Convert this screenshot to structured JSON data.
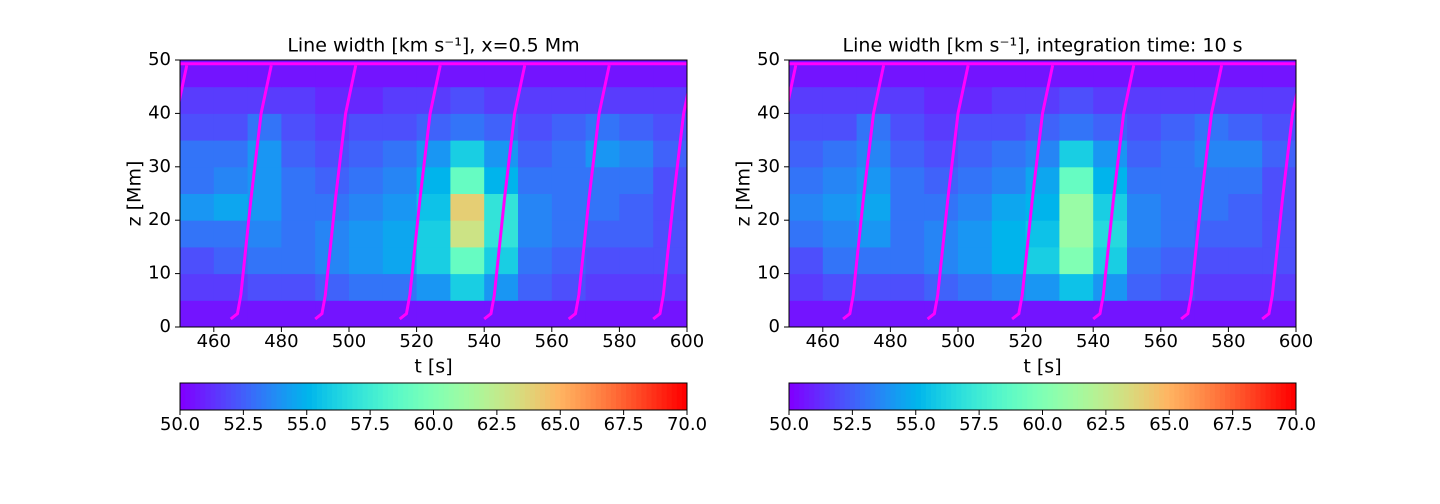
{
  "chart_data": [
    {
      "type": "heatmap",
      "title": "Line width [km s⁻¹], x=0.5 Mm",
      "xlabel": "t [s]",
      "ylabel": "z [Mm]",
      "xlim": [
        450,
        600
      ],
      "xticks": [
        460,
        480,
        500,
        520,
        540,
        560,
        580,
        600
      ],
      "ylim": [
        0,
        50
      ],
      "yticks": [
        0,
        10,
        20,
        30,
        40,
        50
      ],
      "x_bins": [
        450,
        460,
        470,
        480,
        490,
        500,
        510,
        520,
        530,
        540,
        550,
        560,
        570,
        580,
        590,
        600
      ],
      "y_bins": [
        0,
        5,
        10,
        15,
        20,
        25,
        30,
        35,
        40,
        45,
        50
      ],
      "values": [
        [
          50.5,
          50.5,
          50.5,
          50.5,
          50.5,
          50.5,
          50.5,
          50.5,
          50.5,
          50.5,
          50.5,
          50.5,
          50.5,
          50.5,
          50.5
        ],
        [
          51.5,
          51.5,
          52,
          52,
          52.5,
          53,
          53,
          54,
          56,
          54,
          52.5,
          52,
          51.5,
          51.5,
          51.5
        ],
        [
          52,
          52.5,
          53,
          53,
          53.5,
          54,
          54.5,
          56,
          59,
          56,
          53,
          52.5,
          52,
          52,
          52
        ],
        [
          53,
          53,
          53.5,
          53,
          53.5,
          54,
          54.5,
          56,
          63,
          57,
          53.5,
          53,
          52.5,
          52.5,
          52
        ],
        [
          54,
          54.5,
          54,
          53,
          53,
          53.5,
          54,
          55.5,
          64,
          57,
          53.5,
          53,
          53,
          52.5,
          52
        ],
        [
          53,
          53.5,
          54,
          53,
          52.5,
          53,
          53.5,
          55,
          59,
          55,
          53,
          53,
          53,
          53,
          52
        ],
        [
          53,
          53,
          54,
          52.5,
          52,
          52.5,
          53,
          54,
          56,
          54,
          52.5,
          53,
          54,
          53.5,
          52.5
        ],
        [
          52,
          52,
          53,
          52,
          51.5,
          52,
          52,
          52.5,
          53,
          52.5,
          52,
          52.5,
          53,
          52.5,
          52
        ],
        [
          51.5,
          51.5,
          51.5,
          51.5,
          51,
          51,
          51.5,
          51.5,
          52,
          51.5,
          51.5,
          51.5,
          51.5,
          51.5,
          51.5
        ],
        [
          50.5,
          50.5,
          50.5,
          50.5,
          50.5,
          50.5,
          50.5,
          50.5,
          50.5,
          50.5,
          50.5,
          50.5,
          50.5,
          50.5,
          50.5
        ]
      ],
      "colormap": "rainbow",
      "clim": [
        50,
        70
      ],
      "cticks": [
        {
          "value": 50,
          "label": "50.0"
        },
        52.5,
        {
          "value": 55,
          "label": "55.0"
        },
        57.5,
        {
          "value": 60,
          "label": "60.0"
        },
        62.5,
        {
          "value": 65,
          "label": "65.0"
        },
        67.5,
        {
          "value": 70,
          "label": "70.0"
        }
      ],
      "curve_color": "#ff00ff",
      "curves": [
        {
          "t": [
            450,
            600
          ],
          "z": [
            49.3,
            49.3
          ]
        },
        {
          "t": [
            440,
            442,
            443,
            446,
            449,
            452
          ],
          "z": [
            1.5,
            2.5,
            6,
            24,
            40,
            49
          ]
        },
        {
          "t": [
            465,
            467,
            468,
            471,
            474,
            477
          ],
          "z": [
            1.5,
            2.5,
            6,
            24,
            40,
            49
          ]
        },
        {
          "t": [
            490,
            492,
            493,
            496,
            499,
            502
          ],
          "z": [
            1.5,
            2.5,
            6,
            24,
            40,
            49
          ]
        },
        {
          "t": [
            515,
            517,
            518,
            521,
            524,
            527
          ],
          "z": [
            1.5,
            2.5,
            6,
            24,
            40,
            49
          ]
        },
        {
          "t": [
            540,
            542,
            543,
            546,
            549,
            552
          ],
          "z": [
            1.5,
            2.5,
            6,
            24,
            40,
            49
          ]
        },
        {
          "t": [
            565,
            567,
            568,
            571,
            574,
            577
          ],
          "z": [
            1.5,
            2.5,
            6,
            24,
            40,
            49
          ]
        },
        {
          "t": [
            590,
            592,
            593,
            596,
            599,
            602
          ],
          "z": [
            1.5,
            2.5,
            6,
            24,
            40,
            49
          ]
        }
      ]
    },
    {
      "type": "heatmap",
      "title": "Line width [km s⁻¹], integration time: 10 s",
      "xlabel": "t [s]",
      "ylabel": "z [Mm]",
      "xlim": [
        450,
        600
      ],
      "xticks": [
        460,
        480,
        500,
        520,
        540,
        560,
        580,
        600
      ],
      "ylim": [
        0,
        50
      ],
      "yticks": [
        0,
        10,
        20,
        30,
        40,
        50
      ],
      "x_bins": [
        450,
        460,
        470,
        480,
        490,
        500,
        510,
        520,
        530,
        540,
        550,
        560,
        570,
        580,
        590,
        600
      ],
      "y_bins": [
        0,
        5,
        10,
        15,
        20,
        25,
        30,
        35,
        40,
        45,
        50
      ],
      "values": [
        [
          50.5,
          50.5,
          50.5,
          50.5,
          50.5,
          50.5,
          50.5,
          50.5,
          50.5,
          50.5,
          50.5,
          50.5,
          50.5,
          50.5,
          50.5
        ],
        [
          51.5,
          52,
          52,
          52,
          52.5,
          53,
          53.5,
          54,
          55.5,
          54,
          52.5,
          52,
          51.5,
          51.5,
          51.5
        ],
        [
          52,
          53,
          53,
          53,
          53.5,
          54,
          55,
          56,
          60,
          56,
          53,
          52.5,
          52,
          52,
          52
        ],
        [
          53,
          53.5,
          54,
          53,
          53.5,
          54,
          55,
          55.5,
          61,
          56.5,
          53.5,
          53,
          52.5,
          52.5,
          52
        ],
        [
          53.5,
          54,
          54.5,
          53,
          53,
          53.5,
          54.5,
          55,
          61,
          56,
          53.5,
          53,
          53,
          52.5,
          52
        ],
        [
          53,
          53.5,
          54,
          53,
          52.5,
          53,
          53.5,
          54.5,
          59,
          55,
          53,
          53,
          53,
          53,
          52
        ],
        [
          52.5,
          53,
          53.5,
          52.5,
          52,
          52.5,
          53,
          53.5,
          56,
          54,
          52.5,
          53,
          53.5,
          53.5,
          52.5
        ],
        [
          52,
          52,
          53,
          52,
          51.5,
          52,
          52,
          52.5,
          53,
          52.5,
          52,
          52.5,
          53,
          52.5,
          52
        ],
        [
          51.5,
          51.5,
          51.5,
          51.5,
          51,
          51,
          51.5,
          51.5,
          52,
          51.5,
          51.5,
          51.5,
          51.5,
          51.5,
          51.5
        ],
        [
          50.5,
          50.5,
          50.5,
          50.5,
          50.5,
          50.5,
          50.5,
          50.5,
          50.5,
          50.5,
          50.5,
          50.5,
          50.5,
          50.5,
          50.5
        ]
      ],
      "colormap": "rainbow",
      "clim": [
        50,
        70
      ],
      "cticks": [
        {
          "value": 50,
          "label": "50.0"
        },
        52.5,
        {
          "value": 55,
          "label": "55.0"
        },
        57.5,
        {
          "value": 60,
          "label": "60.0"
        },
        62.5,
        {
          "value": 65,
          "label": "65.0"
        },
        67.5,
        {
          "value": 70,
          "label": "70.0"
        }
      ],
      "curve_color": "#ff00ff",
      "curves": [
        {
          "t": [
            450,
            600
          ],
          "z": [
            49.3,
            49.3
          ]
        },
        {
          "t": [
            440,
            442,
            443,
            446,
            449,
            452
          ],
          "z": [
            1.5,
            2.5,
            6,
            24,
            40,
            49
          ]
        },
        {
          "t": [
            466,
            468,
            469,
            472,
            475,
            478
          ],
          "z": [
            1.5,
            2.5,
            6,
            24,
            40,
            49
          ]
        },
        {
          "t": [
            491,
            493,
            494,
            497,
            500,
            503
          ],
          "z": [
            1.5,
            2.5,
            6,
            24,
            40,
            49
          ]
        },
        {
          "t": [
            516,
            518,
            519,
            522,
            525,
            528
          ],
          "z": [
            1.5,
            2.5,
            6,
            24,
            40,
            49
          ]
        },
        {
          "t": [
            540,
            542,
            543,
            546,
            549,
            552
          ],
          "z": [
            1.5,
            2.5,
            6,
            24,
            40,
            49
          ]
        },
        {
          "t": [
            566,
            568,
            569,
            572,
            575,
            578
          ],
          "z": [
            1.5,
            2.5,
            6,
            24,
            40,
            49
          ]
        },
        {
          "t": [
            590,
            592,
            593,
            596,
            599,
            602
          ],
          "z": [
            1.5,
            2.5,
            6,
            24,
            40,
            49
          ]
        }
      ]
    }
  ]
}
